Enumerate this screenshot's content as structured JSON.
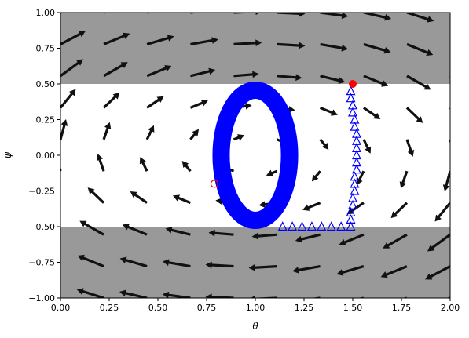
{
  "chart_data": {
    "type": "scatter",
    "title": "",
    "xlabel": "θ",
    "ylabel": "ψ",
    "xlim": [
      0.0,
      2.0
    ],
    "ylim": [
      -1.0,
      1.0
    ],
    "xticks": [
      "0.00",
      "0.25",
      "0.50",
      "0.75",
      "1.00",
      "1.25",
      "1.50",
      "1.75",
      "2.00"
    ],
    "yticks": [
      "−1.00",
      "−0.75",
      "−0.50",
      "−0.25",
      "0.00",
      "0.25",
      "0.50",
      "0.75",
      "1.00"
    ],
    "grid": false,
    "legend": "none",
    "shaded_regions": [
      {
        "y_from": 0.5,
        "y_to": 1.0,
        "color": "#999999"
      },
      {
        "y_from": -1.0,
        "y_to": -0.5,
        "color": "#999999"
      }
    ],
    "vector_field": {
      "x_values": [
        0.0,
        0.222,
        0.444,
        0.667,
        0.889,
        1.111,
        1.333,
        1.556,
        1.778,
        2.0
      ],
      "y_values": [
        -1.0,
        -0.778,
        -0.556,
        -0.333,
        -0.111,
        0.111,
        0.333,
        0.556,
        0.778,
        1.0
      ],
      "color": "#111111"
    },
    "series": [
      {
        "kind": "ellipse-band",
        "center": [
          1.0,
          0.0
        ],
        "radii": [
          0.22,
          0.5
        ],
        "color": "#0000ff"
      },
      {
        "kind": "triangle-markers",
        "color": "#0000ff",
        "points": [
          [
            1.14,
            -0.5
          ],
          [
            1.19,
            -0.5
          ],
          [
            1.24,
            -0.5
          ],
          [
            1.29,
            -0.5
          ],
          [
            1.34,
            -0.5
          ],
          [
            1.39,
            -0.5
          ],
          [
            1.44,
            -0.5
          ],
          [
            1.49,
            -0.5
          ],
          [
            1.49,
            -0.45
          ],
          [
            1.49,
            -0.4
          ],
          [
            1.5,
            -0.35
          ],
          [
            1.5,
            -0.3
          ],
          [
            1.51,
            -0.25
          ],
          [
            1.51,
            -0.2
          ],
          [
            1.51,
            -0.15
          ],
          [
            1.52,
            -0.1
          ],
          [
            1.52,
            -0.05
          ],
          [
            1.52,
            0.0
          ],
          [
            1.52,
            0.05
          ],
          [
            1.52,
            0.1
          ],
          [
            1.52,
            0.15
          ],
          [
            1.51,
            0.2
          ],
          [
            1.51,
            0.25
          ],
          [
            1.5,
            0.3
          ],
          [
            1.5,
            0.35
          ],
          [
            1.49,
            0.4
          ],
          [
            1.49,
            0.45
          ]
        ]
      },
      {
        "kind": "start-point",
        "point": [
          1.5,
          0.5
        ],
        "color": "#ff0000"
      },
      {
        "kind": "hollow-point",
        "point": [
          0.79,
          -0.2
        ],
        "color": "#ff0000"
      }
    ]
  }
}
